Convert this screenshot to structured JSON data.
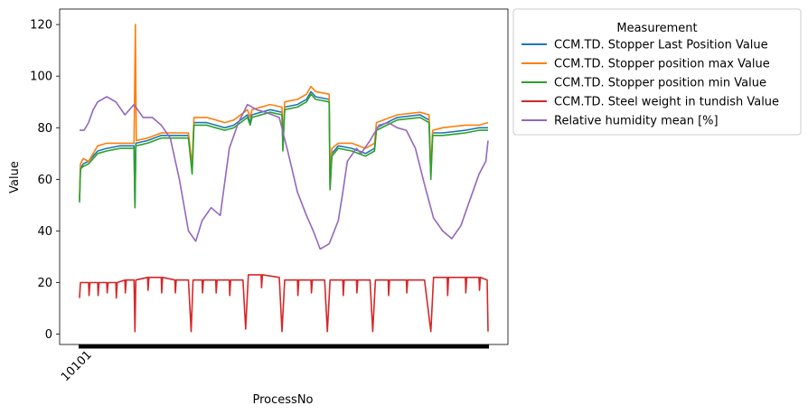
{
  "chart_data": {
    "type": "line",
    "title": "",
    "xlabel": "ProcessNo",
    "ylabel": "Value",
    "ylim": [
      -4,
      126
    ],
    "yticks": [
      0,
      20,
      40,
      60,
      80,
      100,
      120
    ],
    "x_tick_labels": [
      "10101"
    ],
    "x_index_range": [
      0,
      900
    ],
    "grid": false,
    "legend": {
      "title": "Measurement",
      "placement": "outside-top-right"
    },
    "series": [
      {
        "name": "CCM.TD. Stopper Last Position Value",
        "color": "#1f77b4",
        "points": [
          [
            0,
            52
          ],
          [
            2,
            64
          ],
          [
            8,
            66
          ],
          [
            20,
            67
          ],
          [
            40,
            71
          ],
          [
            60,
            72
          ],
          [
            90,
            73
          ],
          [
            120,
            73
          ],
          [
            122,
            50
          ],
          [
            124,
            74
          ],
          [
            150,
            75
          ],
          [
            180,
            77
          ],
          [
            200,
            77
          ],
          [
            220,
            77
          ],
          [
            240,
            77
          ],
          [
            248,
            64
          ],
          [
            252,
            82
          ],
          [
            280,
            82
          ],
          [
            300,
            81
          ],
          [
            320,
            80
          ],
          [
            340,
            81
          ],
          [
            370,
            85
          ],
          [
            376,
            82
          ],
          [
            380,
            85
          ],
          [
            420,
            87
          ],
          [
            446,
            86
          ],
          [
            448,
            73
          ],
          [
            452,
            88
          ],
          [
            480,
            89
          ],
          [
            500,
            91
          ],
          [
            510,
            94
          ],
          [
            520,
            92
          ],
          [
            550,
            91
          ],
          [
            552,
            57
          ],
          [
            556,
            70
          ],
          [
            570,
            73
          ],
          [
            600,
            72
          ],
          [
            630,
            70
          ],
          [
            650,
            72
          ],
          [
            654,
            80
          ],
          [
            700,
            84
          ],
          [
            750,
            85
          ],
          [
            770,
            83
          ],
          [
            774,
            62
          ],
          [
            778,
            78
          ],
          [
            800,
            78
          ],
          [
            850,
            79
          ],
          [
            880,
            80
          ],
          [
            900,
            80
          ]
        ]
      },
      {
        "name": "CCM.TD. Stopper position max Value",
        "color": "#ff7f0e",
        "points": [
          [
            0,
            53
          ],
          [
            2,
            66
          ],
          [
            8,
            68
          ],
          [
            20,
            67
          ],
          [
            40,
            73
          ],
          [
            60,
            74
          ],
          [
            90,
            74
          ],
          [
            120,
            74
          ],
          [
            123,
            120
          ],
          [
            125,
            75
          ],
          [
            150,
            76
          ],
          [
            180,
            78
          ],
          [
            200,
            78
          ],
          [
            220,
            78
          ],
          [
            240,
            78
          ],
          [
            248,
            65
          ],
          [
            252,
            84
          ],
          [
            280,
            84
          ],
          [
            300,
            83
          ],
          [
            320,
            82
          ],
          [
            340,
            83
          ],
          [
            370,
            87
          ],
          [
            376,
            84
          ],
          [
            380,
            87
          ],
          [
            420,
            89
          ],
          [
            446,
            88
          ],
          [
            448,
            74
          ],
          [
            452,
            90
          ],
          [
            480,
            91
          ],
          [
            500,
            93
          ],
          [
            510,
            96
          ],
          [
            520,
            94
          ],
          [
            550,
            93
          ],
          [
            552,
            58
          ],
          [
            556,
            72
          ],
          [
            570,
            74
          ],
          [
            600,
            74
          ],
          [
            630,
            72
          ],
          [
            650,
            74
          ],
          [
            654,
            82
          ],
          [
            700,
            85
          ],
          [
            750,
            86
          ],
          [
            770,
            85
          ],
          [
            774,
            63
          ],
          [
            778,
            79
          ],
          [
            800,
            80
          ],
          [
            850,
            81
          ],
          [
            880,
            81
          ],
          [
            900,
            82
          ]
        ]
      },
      {
        "name": "CCM.TD. Stopper position min Value",
        "color": "#2ca02c",
        "points": [
          [
            0,
            51
          ],
          [
            2,
            64
          ],
          [
            8,
            65
          ],
          [
            20,
            66
          ],
          [
            40,
            70
          ],
          [
            60,
            71
          ],
          [
            90,
            72
          ],
          [
            120,
            72
          ],
          [
            122,
            49
          ],
          [
            124,
            73
          ],
          [
            150,
            74
          ],
          [
            180,
            76
          ],
          [
            200,
            76
          ],
          [
            220,
            76
          ],
          [
            240,
            76
          ],
          [
            248,
            62
          ],
          [
            252,
            81
          ],
          [
            280,
            81
          ],
          [
            300,
            80
          ],
          [
            320,
            79
          ],
          [
            340,
            80
          ],
          [
            370,
            84
          ],
          [
            376,
            81
          ],
          [
            380,
            84
          ],
          [
            420,
            86
          ],
          [
            446,
            85
          ],
          [
            448,
            71
          ],
          [
            452,
            87
          ],
          [
            480,
            88
          ],
          [
            500,
            90
          ],
          [
            510,
            93
          ],
          [
            520,
            91
          ],
          [
            550,
            90
          ],
          [
            552,
            56
          ],
          [
            556,
            69
          ],
          [
            570,
            72
          ],
          [
            600,
            71
          ],
          [
            630,
            69
          ],
          [
            650,
            71
          ],
          [
            654,
            79
          ],
          [
            700,
            83
          ],
          [
            750,
            84
          ],
          [
            770,
            82
          ],
          [
            774,
            60
          ],
          [
            778,
            77
          ],
          [
            800,
            77
          ],
          [
            850,
            78
          ],
          [
            880,
            79
          ],
          [
            900,
            79
          ]
        ]
      },
      {
        "name": "CCM.TD. Steel weight in tundish Value",
        "color": "#d62728",
        "points": [
          [
            0,
            14
          ],
          [
            2,
            20
          ],
          [
            20,
            20
          ],
          [
            21,
            15
          ],
          [
            23,
            20
          ],
          [
            40,
            20
          ],
          [
            41,
            15
          ],
          [
            43,
            20
          ],
          [
            60,
            20
          ],
          [
            61,
            16
          ],
          [
            63,
            20
          ],
          [
            80,
            20
          ],
          [
            81,
            14
          ],
          [
            83,
            20
          ],
          [
            100,
            21
          ],
          [
            101,
            16
          ],
          [
            103,
            21
          ],
          [
            120,
            21
          ],
          [
            122,
            1
          ],
          [
            124,
            21
          ],
          [
            150,
            22
          ],
          [
            151,
            17
          ],
          [
            153,
            22
          ],
          [
            180,
            22
          ],
          [
            181,
            16
          ],
          [
            183,
            22
          ],
          [
            210,
            21
          ],
          [
            211,
            16
          ],
          [
            213,
            21
          ],
          [
            240,
            21
          ],
          [
            246,
            1
          ],
          [
            250,
            21
          ],
          [
            270,
            21
          ],
          [
            271,
            16
          ],
          [
            273,
            21
          ],
          [
            300,
            21
          ],
          [
            301,
            16
          ],
          [
            303,
            21
          ],
          [
            330,
            21
          ],
          [
            331,
            15
          ],
          [
            333,
            21
          ],
          [
            360,
            21
          ],
          [
            366,
            2
          ],
          [
            372,
            23
          ],
          [
            400,
            23
          ],
          [
            401,
            18
          ],
          [
            403,
            23
          ],
          [
            440,
            22
          ],
          [
            446,
            1
          ],
          [
            452,
            21
          ],
          [
            480,
            21
          ],
          [
            481,
            15
          ],
          [
            483,
            21
          ],
          [
            510,
            21
          ],
          [
            511,
            16
          ],
          [
            513,
            21
          ],
          [
            540,
            21
          ],
          [
            546,
            1
          ],
          [
            552,
            21
          ],
          [
            580,
            21
          ],
          [
            581,
            15
          ],
          [
            583,
            21
          ],
          [
            610,
            21
          ],
          [
            611,
            16
          ],
          [
            613,
            21
          ],
          [
            640,
            21
          ],
          [
            646,
            1
          ],
          [
            652,
            21
          ],
          [
            680,
            21
          ],
          [
            681,
            15
          ],
          [
            683,
            21
          ],
          [
            720,
            21
          ],
          [
            721,
            16
          ],
          [
            723,
            21
          ],
          [
            760,
            21
          ],
          [
            774,
            1
          ],
          [
            780,
            22
          ],
          [
            810,
            22
          ],
          [
            811,
            15
          ],
          [
            813,
            22
          ],
          [
            850,
            22
          ],
          [
            851,
            16
          ],
          [
            853,
            22
          ],
          [
            880,
            22
          ],
          [
            881,
            17
          ],
          [
            883,
            22
          ],
          [
            898,
            21
          ],
          [
            900,
            1
          ]
        ]
      },
      {
        "name": "Relative humidity mean [%]",
        "color": "#9467bd",
        "points": [
          [
            0,
            79
          ],
          [
            10,
            79
          ],
          [
            20,
            82
          ],
          [
            30,
            87
          ],
          [
            40,
            90
          ],
          [
            60,
            92
          ],
          [
            80,
            90
          ],
          [
            100,
            85
          ],
          [
            120,
            89
          ],
          [
            140,
            84
          ],
          [
            160,
            84
          ],
          [
            180,
            81
          ],
          [
            200,
            76
          ],
          [
            220,
            60
          ],
          [
            240,
            40
          ],
          [
            256,
            36
          ],
          [
            270,
            44
          ],
          [
            290,
            49
          ],
          [
            310,
            46
          ],
          [
            330,
            72
          ],
          [
            350,
            82
          ],
          [
            370,
            89
          ],
          [
            390,
            87
          ],
          [
            410,
            86
          ],
          [
            440,
            84
          ],
          [
            460,
            70
          ],
          [
            480,
            55
          ],
          [
            500,
            46
          ],
          [
            515,
            40
          ],
          [
            530,
            33
          ],
          [
            550,
            35
          ],
          [
            570,
            44
          ],
          [
            580,
            55
          ],
          [
            590,
            67
          ],
          [
            610,
            72
          ],
          [
            620,
            70
          ],
          [
            640,
            75
          ],
          [
            660,
            81
          ],
          [
            680,
            82
          ],
          [
            700,
            80
          ],
          [
            720,
            79
          ],
          [
            740,
            72
          ],
          [
            760,
            58
          ],
          [
            780,
            45
          ],
          [
            800,
            40
          ],
          [
            820,
            37
          ],
          [
            840,
            42
          ],
          [
            860,
            52
          ],
          [
            880,
            62
          ],
          [
            895,
            67
          ],
          [
            900,
            75
          ]
        ]
      }
    ]
  }
}
